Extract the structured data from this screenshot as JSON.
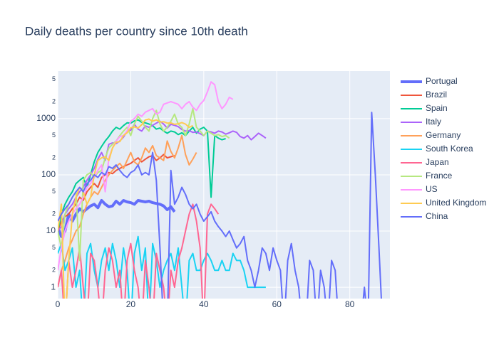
{
  "chart_data": {
    "type": "line",
    "title": "Daily deaths per country since 10th death",
    "x": [
      0,
      1,
      2,
      3,
      4,
      5,
      6,
      7,
      8,
      9,
      10,
      11,
      12,
      13,
      14,
      15,
      16,
      17,
      18,
      19,
      20,
      21,
      22,
      23,
      24,
      25,
      26,
      27,
      28,
      29,
      30,
      31,
      32,
      33,
      34,
      35,
      36,
      37,
      38,
      39,
      40,
      41,
      42,
      43,
      44,
      45,
      46,
      47,
      48,
      49,
      50,
      51,
      52,
      53,
      54,
      55,
      56,
      57,
      58,
      59,
      60,
      61,
      62,
      63,
      64,
      65,
      66,
      67,
      68,
      69,
      70,
      71,
      72,
      73,
      74,
      75,
      76,
      77,
      78,
      79,
      80,
      81,
      82,
      83,
      84,
      85,
      86,
      87,
      88,
      89
    ],
    "xlim": [
      0,
      91
    ],
    "xticks": [
      0,
      20,
      40,
      60,
      80
    ],
    "ylim": [
      0.63,
      7000
    ],
    "log_y": true,
    "grid": true,
    "legend": "right",
    "yticks": [
      1,
      2,
      5,
      10,
      {
        "value": 20,
        "label": "2"
      },
      {
        "value": 50,
        "label": "5"
      },
      100,
      {
        "value": 200,
        "label": "2"
      },
      {
        "value": 500,
        "label": "5"
      },
      1000,
      {
        "value": 2000,
        "label": "2"
      },
      {
        "value": 5000,
        "label": "5"
      }
    ],
    "series": [
      {
        "name": "Portugal",
        "color": "#636efa",
        "width": 4,
        "values": [
          12,
          8,
          10,
          20,
          15,
          20,
          25,
          22,
          25,
          28,
          30,
          26,
          35,
          30,
          27,
          28,
          34,
          30,
          35,
          33,
          32,
          30,
          35,
          34,
          33,
          34,
          32,
          31,
          30,
          28,
          24,
          27,
          22,
          null,
          null,
          null,
          null,
          null,
          null,
          null,
          null,
          null,
          null,
          null,
          null,
          null,
          null,
          null,
          null,
          null,
          null,
          null,
          null,
          null,
          null,
          null,
          null,
          null,
          null,
          null,
          null,
          null,
          null,
          null,
          null,
          null,
          null,
          null,
          null,
          null,
          null,
          null,
          null,
          null,
          null,
          null,
          null,
          null,
          null,
          null,
          null,
          null,
          null,
          null,
          null,
          null,
          null,
          null,
          null,
          null
        ]
      },
      {
        "name": "Brazil",
        "color": "#ef553b",
        "values": [
          10,
          15,
          18,
          20,
          25,
          30,
          40,
          35,
          50,
          60,
          70,
          60,
          90,
          100,
          110,
          105,
          120,
          130,
          140,
          150,
          160,
          180,
          200,
          170,
          190,
          210,
          220,
          180,
          200,
          230,
          200,
          210,
          220,
          null,
          null,
          null,
          null,
          null,
          null,
          null,
          null,
          null,
          null,
          null,
          null,
          null,
          null,
          null,
          null,
          null,
          null,
          null,
          null,
          null,
          null,
          null,
          null,
          null,
          null,
          null,
          null,
          null,
          null,
          null,
          null,
          null,
          null,
          null,
          null,
          null,
          null,
          null,
          null,
          null,
          null,
          null,
          null,
          null,
          null,
          null,
          null,
          null,
          null,
          null,
          null,
          null,
          null,
          null,
          null,
          null
        ]
      },
      {
        "name": "Spain",
        "color": "#00cc96",
        "values": [
          10,
          20,
          30,
          40,
          50,
          70,
          80,
          90,
          60,
          100,
          170,
          250,
          320,
          400,
          480,
          600,
          700,
          650,
          750,
          840,
          830,
          910,
          950,
          860,
          840,
          800,
          750,
          650,
          680,
          600,
          550,
          600,
          580,
          520,
          560,
          500,
          600,
          700,
          550,
          650,
          700,
          600,
          40,
          500,
          450,
          420,
          440,
          null,
          null,
          null,
          null,
          null,
          null,
          null,
          null,
          null,
          null,
          null,
          null,
          null,
          null,
          null,
          null,
          null,
          null,
          null,
          null,
          null,
          null,
          null,
          null,
          null,
          null,
          null,
          null,
          null,
          null,
          null,
          null,
          null,
          null,
          null,
          null,
          null,
          null,
          null,
          null,
          null,
          null,
          null
        ]
      },
      {
        "name": "Italy",
        "color": "#ab63fa",
        "values": [
          10,
          12,
          20,
          25,
          30,
          40,
          50,
          60,
          80,
          100,
          130,
          190,
          250,
          180,
          350,
          370,
          360,
          400,
          470,
          600,
          620,
          790,
          650,
          600,
          740,
          700,
          760,
          830,
          900,
          800,
          680,
          790,
          760,
          720,
          640,
          600,
          610,
          570,
          580,
          540,
          500,
          600,
          580,
          550,
          600,
          580,
          530,
          560,
          600,
          570,
          480,
          450,
          500,
          420,
          480,
          550,
          500,
          450,
          null,
          null,
          null,
          null,
          null,
          null,
          null,
          null,
          null,
          null,
          null,
          null,
          null,
          null,
          null,
          null,
          null,
          null,
          null,
          null,
          null,
          null,
          null,
          null,
          null,
          null,
          null,
          null,
          null,
          null,
          null,
          null
        ]
      },
      {
        "name": "Germany",
        "color": "#ffa15a",
        "values": [
          1,
          2,
          3,
          5,
          7,
          10,
          12,
          20,
          30,
          40,
          50,
          45,
          60,
          80,
          100,
          120,
          140,
          160,
          130,
          180,
          250,
          170,
          150,
          200,
          300,
          250,
          330,
          220,
          200,
          180,
          400,
          260,
          200,
          300,
          500,
          230,
          150,
          190,
          250,
          null,
          null,
          null,
          null,
          null,
          null,
          null,
          null,
          null,
          null,
          null,
          null,
          null,
          null,
          null,
          null,
          null,
          null,
          null,
          null,
          null,
          null,
          null,
          null,
          null,
          null,
          null,
          null,
          null,
          null,
          null,
          null,
          null,
          null,
          null,
          null,
          null,
          null,
          null,
          null,
          null,
          null,
          null,
          null,
          null,
          null,
          null,
          null,
          null,
          null,
          null
        ]
      },
      {
        "name": "South Korea",
        "color": "#19d3f3",
        "values": [
          4,
          6,
          2,
          3,
          5,
          1,
          2,
          0,
          4,
          6,
          2,
          1,
          3,
          5,
          2,
          6,
          3,
          1,
          5,
          2,
          0,
          4,
          8,
          2,
          5,
          0,
          6,
          3,
          1,
          2,
          3,
          4,
          2,
          5,
          1,
          0,
          3,
          4,
          2,
          2,
          3,
          4,
          3,
          2,
          2,
          3,
          2,
          2,
          4,
          3,
          3,
          2,
          1,
          1,
          1,
          1,
          1,
          1,
          null,
          null,
          null,
          null,
          null,
          null,
          null,
          null,
          null,
          null,
          null,
          null,
          null,
          null,
          null,
          null,
          null,
          null,
          null,
          null,
          null,
          null,
          null,
          null,
          null,
          null,
          null,
          null,
          null,
          null,
          null,
          null
        ]
      },
      {
        "name": "Japan",
        "color": "#ff6692",
        "values": [
          1,
          2,
          0,
          3,
          1,
          2,
          5,
          1,
          0,
          4,
          3,
          1,
          0,
          2,
          5,
          3,
          1,
          2,
          0,
          3,
          6,
          2,
          1,
          0,
          3,
          1,
          0,
          4,
          2,
          1,
          0,
          2,
          1,
          3,
          5,
          10,
          20,
          30,
          15,
          5,
          0,
          20,
          30,
          25,
          20,
          null,
          null,
          null,
          null,
          null,
          null,
          null,
          null,
          null,
          null,
          null,
          null,
          null,
          null,
          null,
          null,
          null,
          null,
          null,
          null,
          null,
          null,
          null,
          null,
          null,
          null,
          null,
          null,
          null,
          null,
          null,
          null,
          null,
          null,
          null,
          null,
          null,
          null,
          null,
          null,
          null,
          null,
          null,
          null,
          null
        ]
      },
      {
        "name": "France",
        "color": "#b6e880",
        "values": [
          10,
          5,
          20,
          30,
          40,
          50,
          3,
          80,
          100,
          110,
          90,
          110,
          120,
          200,
          300,
          350,
          400,
          500,
          600,
          700,
          500,
          800,
          1100,
          900,
          700,
          600,
          1000,
          1400,
          800,
          600,
          700,
          900,
          1200,
          800,
          700,
          500,
          800,
          1500,
          700,
          600,
          500,
          600,
          550,
          500,
          520,
          480,
          500,
          450,
          null,
          null,
          null,
          null,
          null,
          null,
          null,
          null,
          null,
          null,
          null,
          null,
          null,
          null,
          null,
          null,
          null,
          null,
          null,
          null,
          null,
          null,
          null,
          null,
          null,
          null,
          null,
          null,
          null,
          null,
          null,
          null,
          null,
          null,
          null,
          null,
          null,
          null,
          null,
          null,
          null,
          null
        ]
      },
      {
        "name": "US",
        "color": "#ff97ff",
        "values": [
          2,
          5,
          10,
          15,
          20,
          25,
          30,
          40,
          60,
          70,
          90,
          120,
          150,
          50,
          200,
          300,
          400,
          480,
          500,
          600,
          900,
          1000,
          1200,
          1100,
          1300,
          1400,
          1500,
          1200,
          1300,
          1800,
          1900,
          2000,
          1900,
          1800,
          1500,
          1800,
          2000,
          1600,
          1400,
          1800,
          2100,
          3000,
          4500,
          4000,
          2000,
          1500,
          1800,
          2400,
          2200,
          null,
          null,
          null,
          null,
          null,
          null,
          null,
          null,
          null,
          null,
          null,
          null,
          null,
          null,
          null,
          null,
          null,
          null,
          null,
          null,
          null,
          null,
          null,
          null,
          null,
          null,
          null,
          null,
          null,
          null,
          null,
          null,
          null,
          null,
          null,
          null,
          null,
          null,
          null,
          null,
          null
        ]
      },
      {
        "name": "United Kingdom",
        "color": "#fecb52",
        "values": [
          10,
          30,
          0,
          3,
          20,
          40,
          60,
          50,
          30,
          40,
          100,
          180,
          200,
          210,
          180,
          300,
          380,
          390,
          500,
          560,
          690,
          710,
          680,
          780,
          950,
          980,
          900,
          950,
          870,
          880,
          830,
          840,
          790,
          810,
          850,
          800,
          700,
          750,
          null,
          null,
          null,
          null,
          null,
          null,
          null,
          null,
          null,
          null,
          null,
          null,
          null,
          null,
          null,
          null,
          null,
          null,
          null,
          null,
          null,
          null,
          null,
          null,
          null,
          null,
          null,
          null,
          null,
          null,
          null,
          null,
          null,
          null,
          null,
          null,
          null,
          null,
          null,
          null,
          null,
          null,
          null,
          null,
          null,
          null,
          null,
          null,
          null,
          null,
          null,
          null
        ]
      },
      {
        "name": "China",
        "color": "#636efa",
        "values": [
          15,
          20,
          25,
          30,
          40,
          50,
          60,
          50,
          70,
          80,
          100,
          90,
          110,
          100,
          140,
          130,
          150,
          120,
          100,
          90,
          110,
          120,
          150,
          100,
          110,
          100,
          250,
          80,
          5,
          0,
          0,
          120,
          30,
          40,
          60,
          45,
          30,
          25,
          30,
          20,
          15,
          18,
          22,
          15,
          12,
          10,
          8,
          10,
          7,
          5,
          6,
          8,
          3,
          2,
          1,
          2,
          5,
          4,
          2,
          5,
          3,
          2,
          0,
          3,
          6,
          2,
          1,
          0,
          0,
          3,
          2,
          0,
          2,
          1,
          0,
          3,
          2,
          0,
          0,
          0,
          0,
          0,
          0,
          0,
          1,
          0,
          1290,
          100,
          5,
          0
        ]
      }
    ]
  }
}
